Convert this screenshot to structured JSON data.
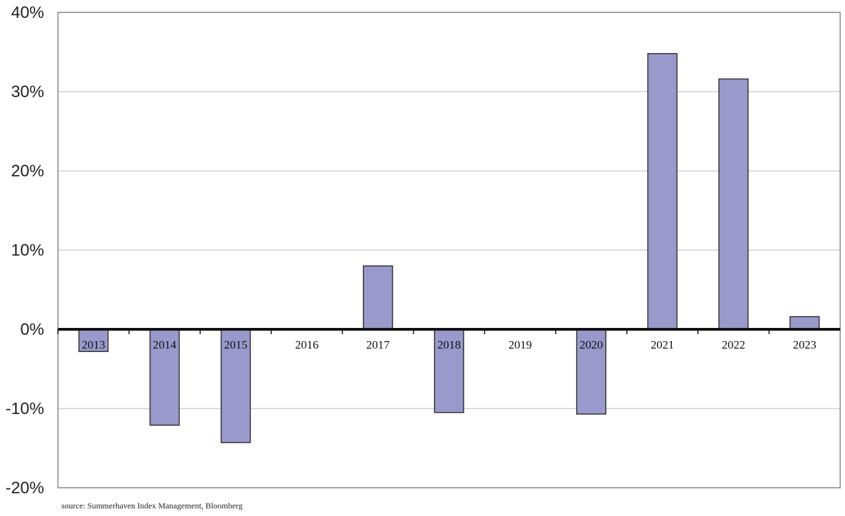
{
  "chart_data": {
    "type": "bar",
    "categories": [
      "2013",
      "2014",
      "2015",
      "2016",
      "2017",
      "2018",
      "2019",
      "2020",
      "2021",
      "2022",
      "2023"
    ],
    "values": [
      -2.8,
      -12.1,
      -14.3,
      -0.1,
      8.0,
      -10.5,
      0.0,
      -10.7,
      34.8,
      31.6,
      1.6
    ],
    "ylim": [
      -20,
      40
    ],
    "yticks": [
      40,
      30,
      20,
      10,
      0,
      -10,
      -20
    ],
    "ytick_labels": [
      "40%",
      "30%",
      "20%",
      "10%",
      "0%",
      "-10%",
      "-20%"
    ],
    "grid": true,
    "bar_color": "#9999cc",
    "bar_edge_color": "#333333",
    "source": "source: Summerhaven Index Management, Bloomberg"
  }
}
